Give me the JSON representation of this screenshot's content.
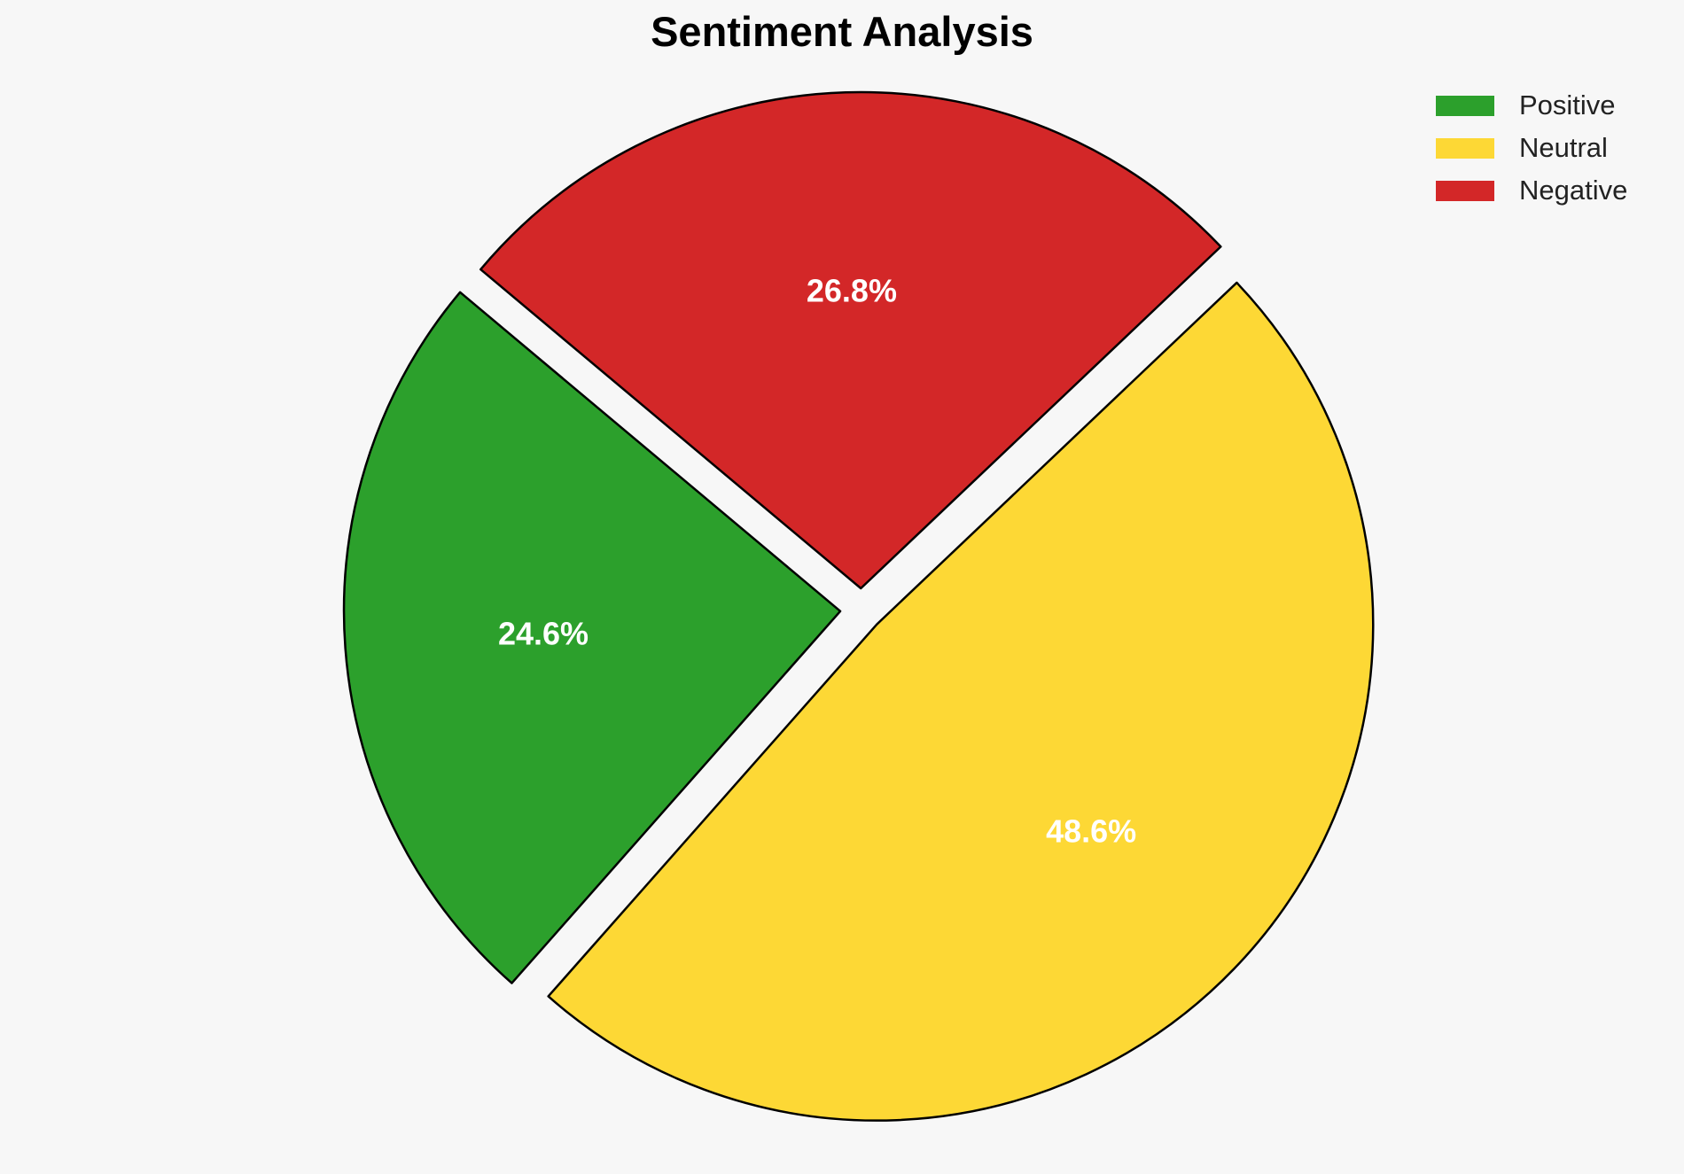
{
  "chart_data": {
    "type": "pie",
    "title": "Sentiment Analysis",
    "categories": [
      "Positive",
      "Neutral",
      "Negative"
    ],
    "values": [
      24.6,
      48.6,
      26.8
    ],
    "labels": [
      "24.6%",
      "48.6%",
      "26.8%"
    ],
    "colors": [
      "#2ca02c",
      "#fdd835",
      "#d32728"
    ],
    "exploded": true,
    "legend_position": "top-right"
  }
}
